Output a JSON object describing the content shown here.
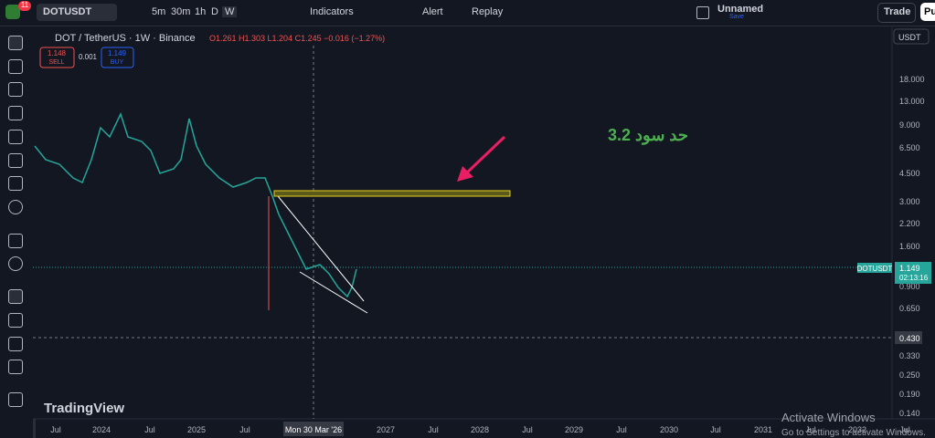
{
  "toolbar": {
    "symbol": "DOTUSDT",
    "intervals": [
      "5m",
      "30m",
      "1h",
      "D",
      "W"
    ],
    "indicators": "Indicators",
    "alert": "Alert",
    "replay": "Replay",
    "layout_name": "Unnamed",
    "layout_status": "Save",
    "trade": "Trade",
    "publish": "Pu",
    "badge": "11"
  },
  "legend": {
    "title": "DOT / TetherUS · 1W · Binance",
    "ohlc": "O1.261 H1.303 L1.204 C1.245 −0.016 (−1.27%)",
    "sell_price": "1.148",
    "sell": "SELL",
    "spread": "0.001",
    "buy_price": "1.149",
    "buy": "BUY"
  },
  "currency": "USDT",
  "price_axis": [
    "18.000",
    "13.000",
    "9.000",
    "6.500",
    "4.500",
    "3.000",
    "2.200",
    "1.600",
    "0.900",
    "0.650",
    "0.330",
    "0.250",
    "0.190",
    "0.140"
  ],
  "time_axis": [
    "Jul",
    "2024",
    "Jul",
    "2025",
    "Jul",
    "2027",
    "Jul",
    "2028",
    "Jul",
    "2029",
    "Jul",
    "2030",
    "Jul",
    "2031",
    "Jul",
    "2032",
    "Jul"
  ],
  "crosshair": {
    "price": "0.430",
    "date": "Mon 30 Mar '26"
  },
  "price_tag": {
    "symbol": "DOTUSDT",
    "price": "1.149",
    "countdown": "02:13:16"
  },
  "annotation": "حد سود 3.2",
  "branding": "TradingView",
  "watermark": {
    "title": "Activate Windows",
    "subtitle": "Go to Settings to activate Windows."
  }
}
